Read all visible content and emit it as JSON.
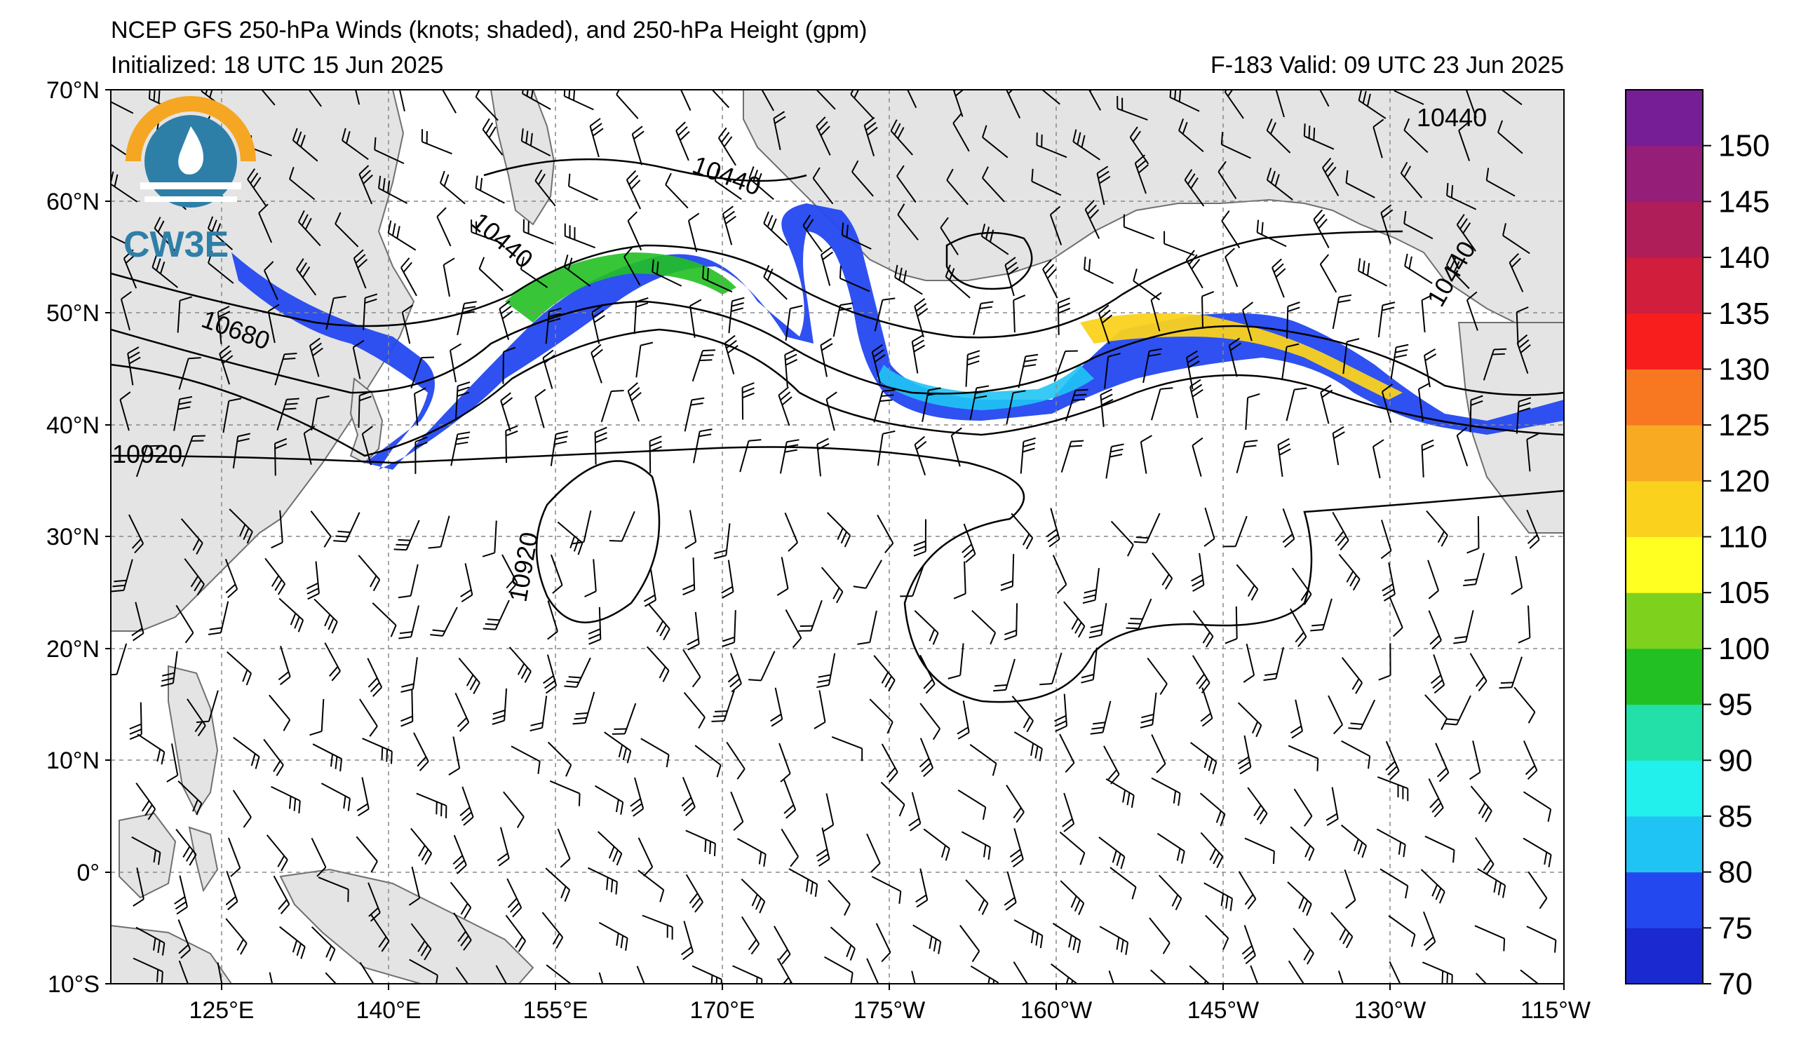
{
  "header": {
    "title": "NCEP GFS 250-hPa Winds (knots; shaded), and 250-hPa Height (gpm)",
    "initialized": "Initialized: 18 UTC 15 Jun 2025",
    "valid": "F-183  Valid: 09 UTC 23 Jun 2025"
  },
  "logo": {
    "text": "CW3E"
  },
  "axes": {
    "lat_labels": [
      "70°N",
      "60°N",
      "50°N",
      "40°N",
      "30°N",
      "20°N",
      "10°N",
      "0°",
      "10°S"
    ],
    "lon_labels": [
      "125°E",
      "140°E",
      "155°E",
      "170°E",
      "175°W",
      "160°W",
      "145°W",
      "130°W",
      "115°W"
    ]
  },
  "contours": {
    "labels": [
      "10440",
      "10440",
      "10440",
      "10440",
      "10680",
      "10920",
      "10920"
    ]
  },
  "colorbar": {
    "ticks": [
      "150",
      "145",
      "140",
      "135",
      "130",
      "125",
      "120",
      "110",
      "105",
      "100",
      "95",
      "90",
      "85",
      "80",
      "75",
      "70"
    ],
    "colors": [
      "#1a2ad0",
      "#2448f0",
      "#20c4f4",
      "#22f0ec",
      "#22e0a8",
      "#22c022",
      "#7ed21e",
      "#ffff22",
      "#fad21e",
      "#f8aa22",
      "#f87822",
      "#f81e1e",
      "#d01e3c",
      "#b01e5a",
      "#941e78",
      "#761e96"
    ]
  },
  "colors": {
    "land": "#e4e4e4",
    "coast": "#707070",
    "grid": "#888888"
  }
}
